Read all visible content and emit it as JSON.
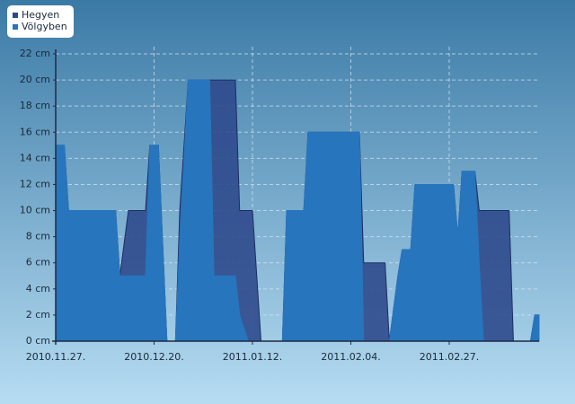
{
  "chart_data": {
    "type": "area",
    "x": [
      "2010.11.27.",
      "2010.11.29.",
      "2010.11.30.",
      "2010.12.11.",
      "2010.12.12.",
      "2010.12.14.",
      "2010.12.18.",
      "2010.12.19.",
      "2010.12.21.",
      "2010.12.23.",
      "2010.12.25.",
      "2010.12.26.",
      "2010.12.28.",
      "2011.01.02.",
      "2011.01.03.",
      "2011.01.08.",
      "2011.01.09.",
      "2011.01.11.",
      "2011.01.12.",
      "2011.01.14.",
      "2011.01.19.",
      "2011.01.20.",
      "2011.01.24.",
      "2011.01.25.",
      "2011.02.06.",
      "2011.02.07.",
      "2011.02.12.",
      "2011.02.13.",
      "2011.02.15.",
      "2011.02.16.",
      "2011.02.18.",
      "2011.02.19.",
      "2011.02.28.",
      "2011.03.01.",
      "2011.03.02.",
      "2011.03.05.",
      "2011.03.06.",
      "2011.03.07.",
      "2011.03.13.",
      "2011.03.14.",
      "2011.03.18.",
      "2011.03.19.",
      "2011.03.20."
    ],
    "series": [
      {
        "name": "Hegyen",
        "color": "#2f4a8c",
        "values": [
          15,
          15,
          10,
          10,
          5,
          10,
          10,
          15,
          15,
          0,
          0,
          10,
          20,
          20,
          20,
          20,
          10,
          10,
          10,
          0,
          0,
          10,
          10,
          16,
          16,
          6,
          6,
          0,
          5,
          7,
          7,
          12,
          12,
          8,
          13,
          13,
          10,
          10,
          10,
          0,
          0,
          2,
          2
        ]
      },
      {
        "name": "Völgyben",
        "color": "#2775bd",
        "values": [
          15,
          15,
          10,
          10,
          5,
          5,
          5,
          15,
          15,
          0,
          0,
          8,
          20,
          20,
          5,
          5,
          2,
          0,
          0,
          0,
          0,
          10,
          10,
          16,
          16,
          0,
          0,
          0,
          5,
          7,
          7,
          12,
          12,
          8,
          13,
          13,
          6,
          0,
          0,
          0,
          0,
          2,
          2
        ]
      }
    ],
    "xlim": [
      "2010.11.27.",
      "2011.03.20."
    ],
    "xticks": [
      "2010.11.27.",
      "2010.12.20.",
      "2011.01.12.",
      "2011.02.04.",
      "2011.02.27."
    ],
    "ylim": [
      0,
      22
    ],
    "yticks": [
      {
        "value": 0,
        "label": "0 cm"
      },
      {
        "value": 2,
        "label": "2 cm"
      },
      {
        "value": 4,
        "label": "4 cm"
      },
      {
        "value": 6,
        "label": "6 cm"
      },
      {
        "value": 8,
        "label": "8 cm"
      },
      {
        "value": 10,
        "label": "10 cm"
      },
      {
        "value": 12,
        "label": "12 cm"
      },
      {
        "value": 14,
        "label": "14 cm"
      },
      {
        "value": 16,
        "label": "16 cm"
      },
      {
        "value": 18,
        "label": "18 cm"
      },
      {
        "value": 20,
        "label": "20 cm"
      },
      {
        "value": 22,
        "label": "22 cm"
      }
    ],
    "grid": true,
    "legend": "upper left"
  }
}
